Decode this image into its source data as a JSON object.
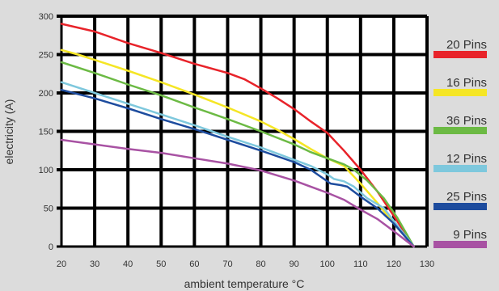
{
  "chart_data": {
    "type": "line",
    "xlabel": "ambient temperature °C",
    "ylabel": "electricity (A)",
    "xlim": [
      20,
      130
    ],
    "ylim": [
      0,
      300
    ],
    "x_ticks": [
      20,
      30,
      40,
      50,
      60,
      70,
      80,
      90,
      100,
      110,
      120,
      130
    ],
    "y_ticks": [
      0,
      50,
      100,
      150,
      200,
      250,
      300
    ],
    "grid": true,
    "legend_position": "right",
    "series": [
      {
        "name": "20 Pins",
        "color": "#e8232a",
        "x": [
          20,
          30,
          40,
          50,
          60,
          70,
          75,
          80,
          85,
          90,
          95,
          100,
          105,
          110,
          115,
          120,
          126
        ],
        "y": [
          290,
          280,
          265,
          252,
          238,
          226,
          218,
          206,
          193,
          179,
          163,
          148,
          125,
          100,
          72,
          40,
          0
        ]
      },
      {
        "name": "16 Pins",
        "color": "#f5e625",
        "x": [
          20,
          25,
          30,
          40,
          50,
          60,
          70,
          80,
          85,
          90,
          95,
          100,
          105,
          110,
          115,
          120,
          126
        ],
        "y": [
          256,
          250,
          243,
          229,
          214,
          198,
          181,
          163,
          152,
          140,
          127,
          115,
          105,
          82,
          57,
          30,
          0
        ]
      },
      {
        "name": "36 Pins",
        "color": "#6cba44",
        "x": [
          20,
          30,
          40,
          50,
          60,
          70,
          80,
          90,
          95,
          100,
          105,
          108,
          112,
          117,
          121,
          126
        ],
        "y": [
          240,
          226,
          211,
          197,
          181,
          166,
          150,
          133,
          123,
          115,
          107,
          100,
          86,
          63,
          38,
          0
        ]
      },
      {
        "name": "12 Pins",
        "color": "#7ec8dd",
        "x": [
          20,
          30,
          40,
          50,
          60,
          70,
          80,
          90,
          95,
          100,
          102,
          105,
          108,
          112,
          117,
          126
        ],
        "y": [
          214,
          200,
          186,
          172,
          158,
          143,
          129,
          113,
          105,
          94,
          88,
          85,
          78,
          63,
          50,
          0
        ]
      },
      {
        "name": "25 Pins",
        "color": "#1d4c9e",
        "x": [
          20,
          30,
          40,
          50,
          60,
          70,
          80,
          90,
          95,
          99,
          101,
          104,
          106,
          110,
          115,
          120,
          126
        ],
        "y": [
          204,
          193,
          180,
          166,
          153,
          139,
          125,
          110,
          100,
          88,
          82,
          80,
          78,
          65,
          50,
          30,
          0
        ]
      },
      {
        "name": "9 Pins",
        "color": "#a852a3",
        "x": [
          20,
          30,
          40,
          50,
          60,
          70,
          80,
          90,
          100,
          105,
          110,
          115,
          120,
          126
        ],
        "y": [
          139,
          133,
          127,
          122,
          115,
          108,
          99,
          86,
          70,
          61,
          48,
          36,
          20,
          0
        ]
      }
    ]
  }
}
